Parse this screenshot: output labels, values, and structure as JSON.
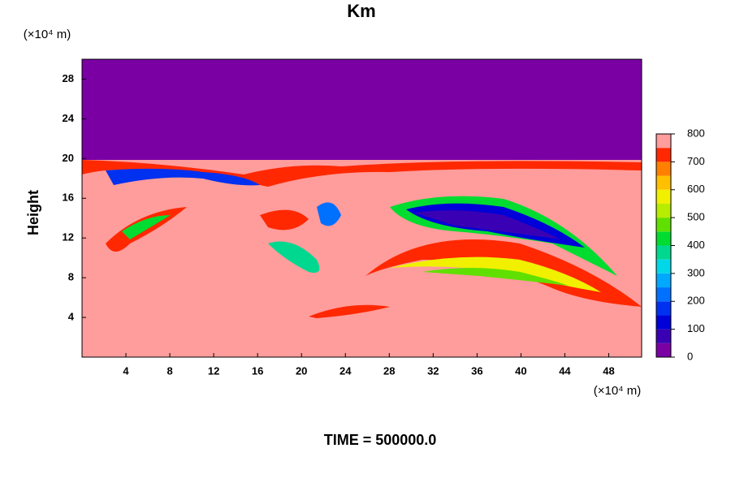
{
  "chart_data": {
    "type": "contour",
    "title": "Km",
    "ylabel": "Height",
    "y_unit_label": "(×10⁴ m)",
    "x_unit_label": "(×10⁴ m)",
    "footer": "TIME = 500000.0",
    "xlim": [
      0,
      51
    ],
    "xticks": [
      4,
      8,
      12,
      16,
      20,
      24,
      28,
      32,
      36,
      40,
      44,
      48
    ],
    "ylim": [
      0,
      30
    ],
    "yticks": [
      4,
      8,
      12,
      16,
      20,
      24,
      28
    ],
    "colorbar": {
      "levels": [
        0,
        50,
        100,
        150,
        200,
        250,
        300,
        350,
        400,
        450,
        500,
        550,
        600,
        650,
        700,
        750,
        800
      ],
      "colors": [
        "#7a00a4",
        "#3a00b4",
        "#0000d8",
        "#0030f0",
        "#0070ff",
        "#00a8ff",
        "#00d8e8",
        "#00d890",
        "#00dc30",
        "#60e000",
        "#b8ec00",
        "#f0f000",
        "#ffc000",
        "#ff8000",
        "#ff2800",
        "#ff9c9c"
      ],
      "ticks": [
        0,
        100,
        200,
        300,
        400,
        500,
        600,
        700,
        800
      ]
    }
  }
}
